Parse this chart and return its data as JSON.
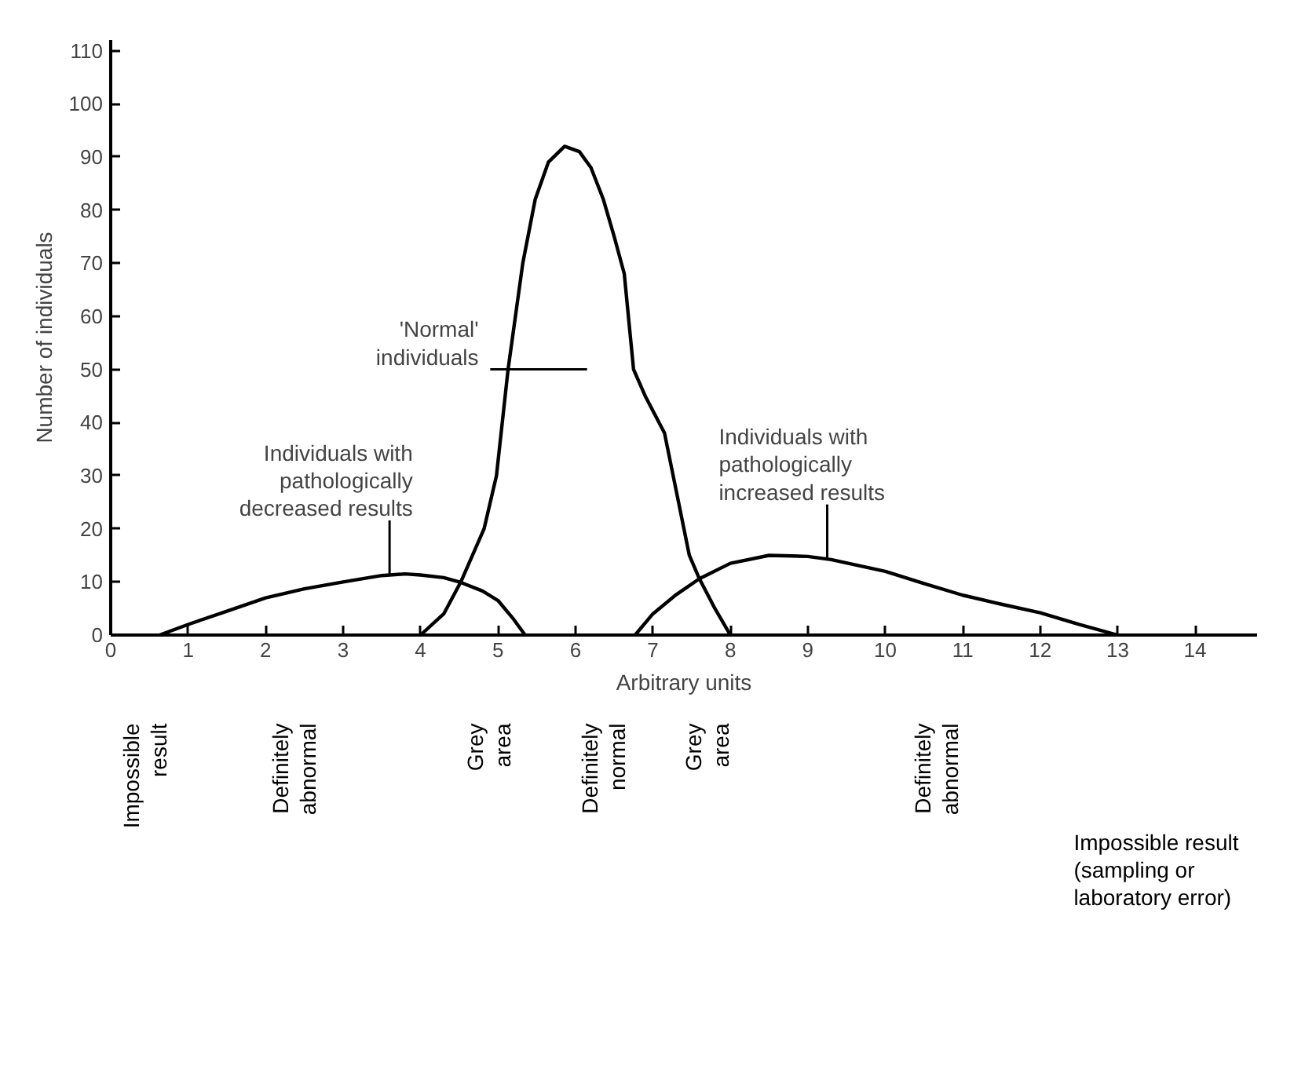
{
  "chart_data": [
    {
      "type": "line",
      "xlabel": "Arbitrary units",
      "ylabel": "Number of individuals",
      "xlim": [
        0,
        14.8
      ],
      "ylim": [
        0,
        112
      ],
      "xticks": [
        0,
        1,
        2,
        3,
        4,
        5,
        6,
        7,
        8,
        9,
        10,
        11,
        12,
        13,
        14
      ],
      "yticks": [
        0,
        10,
        20,
        30,
        40,
        50,
        60,
        70,
        80,
        90,
        100,
        110
      ],
      "grid": false,
      "marker": "none",
      "line_style": "solid",
      "series": [
        {
          "color": "#000000",
          "x": [
            0.63,
            1,
            1.5,
            2,
            2.5,
            3,
            3.5,
            3.8,
            4,
            4.3,
            4.5,
            4.8,
            5,
            5.2,
            5.3,
            5.35
          ],
          "values": [
            0,
            2,
            4.5,
            7,
            8.7,
            10,
            11.2,
            11.5,
            11.3,
            10.8,
            10,
            8.3,
            6.5,
            3,
            1,
            0
          ]
        },
        {
          "color": "#000000",
          "x": [
            4,
            4.3,
            4.52,
            4.82,
            4.98,
            5.13,
            5.32,
            5.48,
            5.65,
            5.86,
            6.05,
            6.2,
            6.36,
            6.5,
            6.63,
            6.75,
            6.9,
            7.15,
            7.47,
            7.6,
            7.8,
            8
          ],
          "values": [
            0,
            4,
            10,
            20,
            30,
            50,
            70,
            82,
            89,
            92,
            91,
            88,
            82,
            75,
            68,
            50,
            45,
            38,
            15,
            10.6,
            5,
            0
          ]
        },
        {
          "color": "#000000",
          "x": [
            6.77,
            7,
            7.3,
            7.6,
            8,
            8.5,
            9,
            9.3,
            10,
            10.5,
            11,
            11.5,
            12,
            12.5,
            13
          ],
          "values": [
            0,
            4,
            7.6,
            10.6,
            13.5,
            15,
            14.8,
            14.2,
            12,
            9.7,
            7.5,
            5.8,
            4.2,
            2,
            0
          ]
        }
      ],
      "annotations": [
        {
          "text": "Individuals with\npathologically\ndecreased results",
          "x": 3.6,
          "y": 11.5
        },
        {
          "text": "'Normal'\nindividuals",
          "x": 5.15,
          "y": 50
        },
        {
          "text": "Individuals with\npathologically\nincreased results",
          "x": 9.25,
          "y": 14.5
        }
      ]
    },
    {
      "type": "other",
      "annotations": [
        "Impossible\nresult",
        "Definitely\nabnormal",
        "Grey\narea",
        "Definitely\nnormal",
        "Grey\narea",
        "Definitely\nabnormal",
        "Impossible result\n(sampling or\nlaboratory error)"
      ]
    }
  ]
}
